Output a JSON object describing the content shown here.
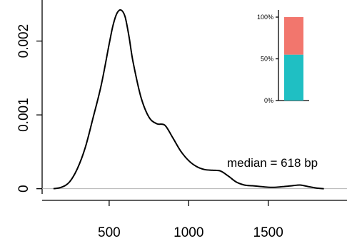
{
  "chart_data": [
    {
      "type": "line",
      "title": "",
      "xlabel": "",
      "ylabel": "",
      "xlim": [
        110,
        1910
      ],
      "ylim": [
        -9e-05,
        0.00245
      ],
      "x_ticks": [
        500,
        1000,
        1500
      ],
      "x_tick_labels": [
        "500",
        "1000",
        "1500"
      ],
      "y_ticks": [
        0,
        0.001,
        0.002
      ],
      "y_tick_labels": [
        "0",
        "0.001",
        "0.002"
      ],
      "grid": false,
      "baseline": 0,
      "annotation": "median = 618 bp",
      "series": [
        {
          "color": "#000000",
          "x": [
            150,
            200,
            250,
            300,
            350,
            400,
            450,
            500,
            525,
            550,
            575,
            600,
            625,
            650,
            700,
            750,
            800,
            850,
            900,
            950,
            1000,
            1050,
            1100,
            1150,
            1200,
            1250,
            1300,
            1350,
            1400,
            1450,
            1500,
            1550,
            1600,
            1650,
            1700,
            1750,
            1800,
            1850
          ],
          "y": [
            0.0,
            2e-05,
            9e-05,
            0.00027,
            0.00056,
            0.00097,
            0.0014,
            0.00196,
            0.00222,
            0.00238,
            0.00242,
            0.00233,
            0.00206,
            0.00172,
            0.00124,
            0.00097,
            0.00088,
            0.00086,
            0.00069,
            0.00051,
            0.00038,
            0.0003,
            0.00026,
            0.00025,
            0.00024,
            0.00017,
            9e-05,
            5e-05,
            4e-05,
            3e-05,
            2e-05,
            2e-05,
            3e-05,
            4e-05,
            5e-05,
            3e-05,
            1e-05,
            0.0
          ]
        }
      ]
    },
    {
      "type": "bar",
      "stacked": true,
      "title": "",
      "xlabel": "",
      "ylabel": "",
      "ylim": [
        0,
        100
      ],
      "y_ticks": [
        0,
        50,
        100
      ],
      "y_tick_labels": [
        "0%",
        "50%",
        "100%"
      ],
      "categories": [
        ""
      ],
      "series": [
        {
          "color": "#1fbfc3",
          "values": [
            55
          ]
        },
        {
          "color": "#f2766d",
          "values": [
            45
          ]
        }
      ]
    }
  ]
}
